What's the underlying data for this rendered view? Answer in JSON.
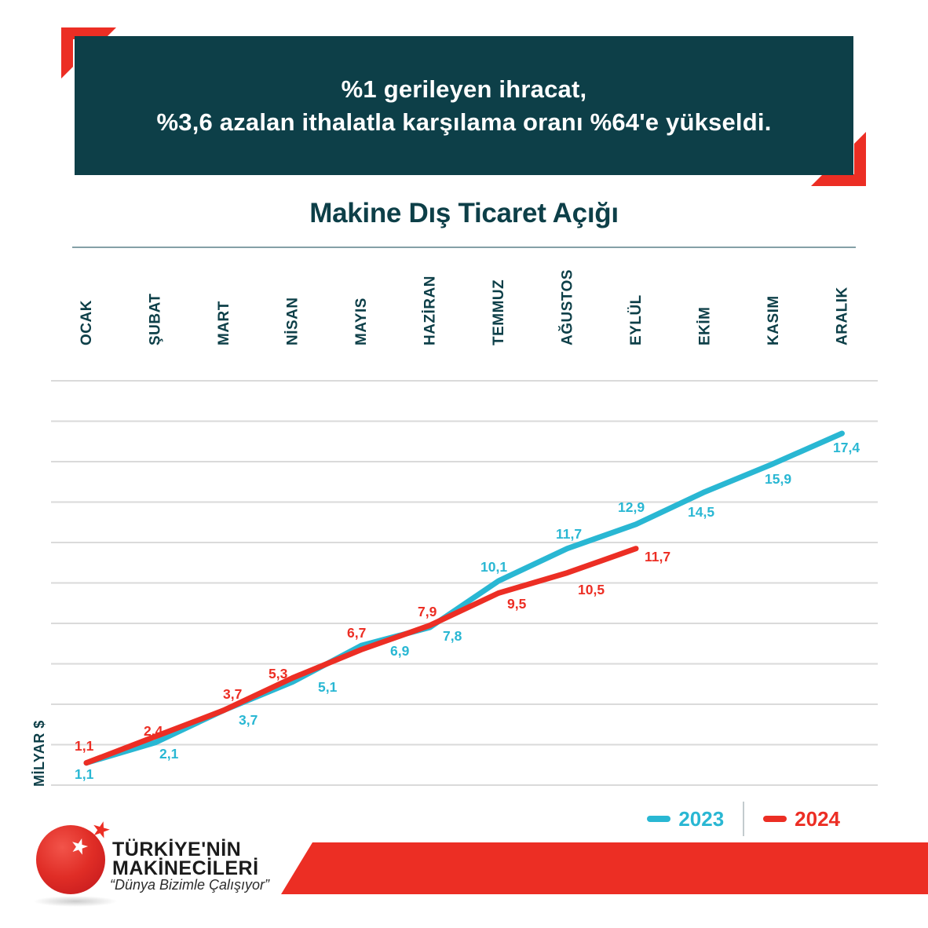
{
  "header": {
    "line1": "%1 gerileyen ihracat,",
    "line2": "%3,6 azalan ithalatla karşılama oranı %64'e yükseldi."
  },
  "chart_data": {
    "type": "line",
    "title": "Makine Dış Ticaret Açığı",
    "xlabel": "",
    "ylabel": "MİLYAR $",
    "categories": [
      "OCAK",
      "ŞUBAT",
      "MART",
      "NİSAN",
      "MAYIS",
      "HAZİRAN",
      "TEMMUZ",
      "AĞUSTOS",
      "EYLÜL",
      "EKİM",
      "KASIM",
      "ARALIK"
    ],
    "ylim": [
      0,
      20
    ],
    "gridline_step": 2,
    "grid": true,
    "legend_position": "bottom-right",
    "series": [
      {
        "name": "2023",
        "color": "#29b7d3",
        "values": [
          1.1,
          2.1,
          3.7,
          5.1,
          6.9,
          7.8,
          10.1,
          11.7,
          12.9,
          14.5,
          15.9,
          17.4
        ],
        "labels": [
          "1,1",
          "2,1",
          "3,7",
          "5,1",
          "6,9",
          "7,8",
          "10,1",
          "11,7",
          "12,9",
          "14,5",
          "15,9",
          "17,4"
        ]
      },
      {
        "name": "2024",
        "color": "#ec2e24",
        "values": [
          1.1,
          2.4,
          3.7,
          5.3,
          6.7,
          7.9,
          9.5,
          10.5,
          11.7
        ],
        "labels": [
          "1,1",
          "2,4",
          "3,7",
          "5,3",
          "6,7",
          "7,9",
          "9,5",
          "10,5",
          "11,7"
        ]
      }
    ]
  },
  "logo": {
    "name_line1": "TÜRKİYE'NİN",
    "name_line2": "MAKİNECİLERİ",
    "tagline": "“Dünya Bizimle Çalışıyor”",
    "star_glyph": "★"
  },
  "icons": {
    "corner_bracket": "corner-bracket",
    "legend_dash": "legend-dash"
  },
  "colors": {
    "teal": "#0d3f48",
    "red": "#ec2e24",
    "cyan": "#29b7d3",
    "gridline": "#dadada",
    "title_underline": "#84a0a7",
    "legend_divider": "#c3cbce",
    "white": "#ffffff"
  }
}
